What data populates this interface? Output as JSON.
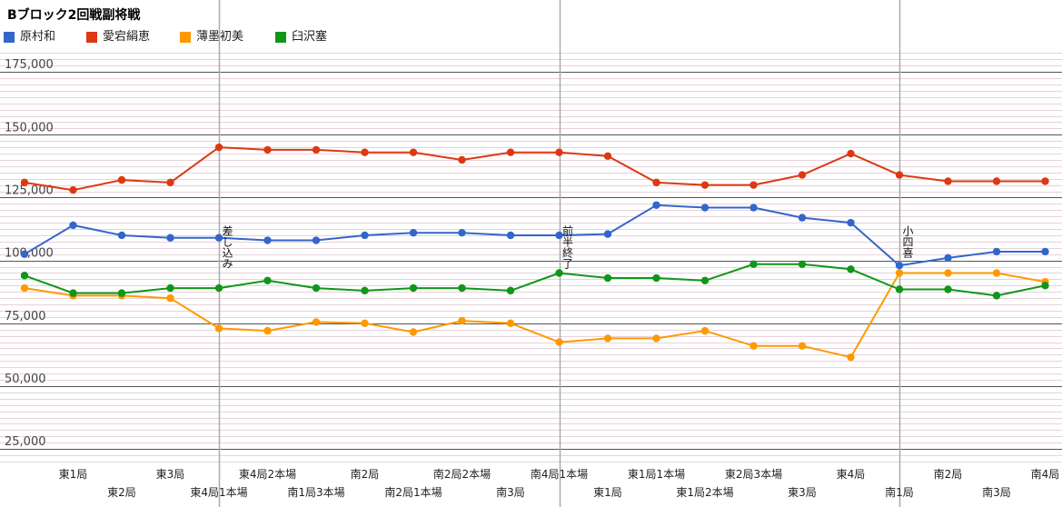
{
  "chart_data": {
    "type": "line",
    "title": "Bブロック2回戦副将戦",
    "xlabel": "",
    "ylabel": "",
    "ylim": [
      20000,
      183000
    ],
    "y_ticks": [
      25000,
      50000,
      75000,
      100000,
      125000,
      150000,
      175000
    ],
    "y_tick_labels": [
      "25,000",
      "50,000",
      "75,000",
      "100,000",
      "125,000",
      "150,000",
      "175,000"
    ],
    "grid": true,
    "legend": "top-left",
    "x": [
      "",
      "東1局",
      "東2局",
      "東3局",
      "東4局1本場",
      "東4局2本場",
      "南1局3本場",
      "南2局",
      "南2局1本場",
      "南2局2本場",
      "南3局",
      "南4局1本場",
      "東1局",
      "東1局1本場",
      "東1局2本場",
      "東2局3本場",
      "東3局",
      "東4局",
      "南1局",
      "南2局",
      "南3局",
      "南4局"
    ],
    "series": [
      {
        "name": "原村和",
        "color": "#3366cc",
        "values": [
          102500,
          114000,
          110000,
          109000,
          109000,
          108000,
          108000,
          110000,
          111000,
          111000,
          110000,
          110000,
          110500,
          122000,
          121000,
          121000,
          117000,
          115000,
          98000,
          101000,
          103500,
          103500
        ]
      },
      {
        "name": "愛宕絹恵",
        "color": "#dc3912",
        "values": [
          131000,
          128000,
          132000,
          131000,
          145000,
          144000,
          144000,
          143000,
          143000,
          140000,
          143000,
          143000,
          141500,
          131000,
          130000,
          130000,
          134000,
          142500,
          134000,
          131500,
          131500,
          131500
        ]
      },
      {
        "name": "薄墨初美",
        "color": "#ff9900",
        "values": [
          89000,
          86000,
          86000,
          85000,
          73000,
          72000,
          75500,
          75000,
          71500,
          76000,
          75000,
          67500,
          69000,
          69000,
          72000,
          66000,
          66000,
          61500,
          95000,
          95000,
          95000,
          91500
        ]
      },
      {
        "name": "臼沢塞",
        "color": "#109618",
        "values": [
          94000,
          87000,
          87000,
          89000,
          89000,
          92000,
          89000,
          88000,
          89000,
          89000,
          88000,
          95000,
          93000,
          93000,
          92000,
          98500,
          98500,
          96500,
          88500,
          88500,
          86000,
          90000
        ]
      }
    ],
    "annotations": [
      {
        "x_index": 4,
        "text": "差し込み"
      },
      {
        "x_index": 11,
        "text": "前半終了"
      },
      {
        "x_index": 18,
        "text": "小四喜"
      }
    ]
  }
}
